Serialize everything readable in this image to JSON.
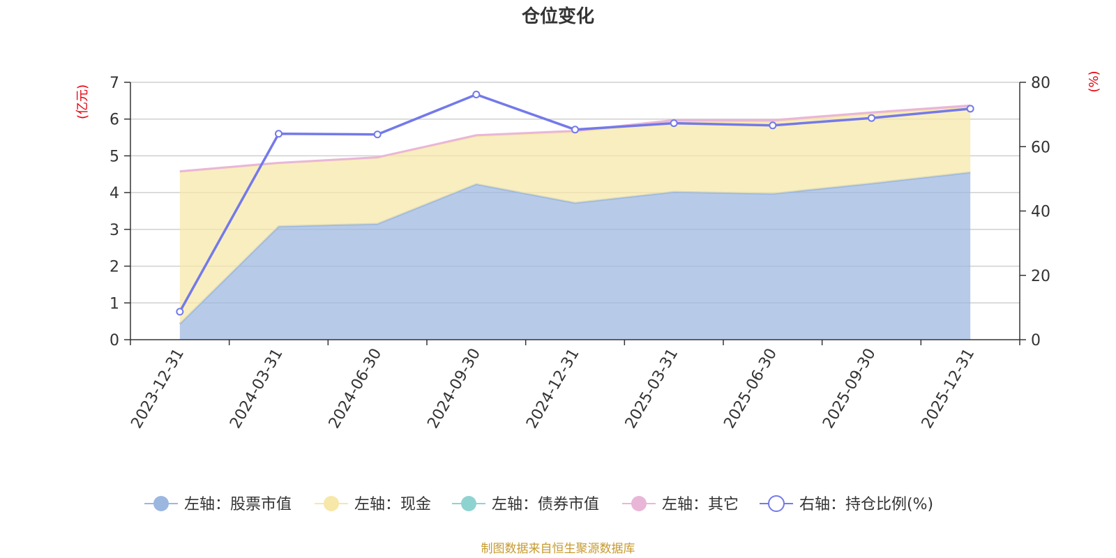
{
  "chart_data": {
    "type": "area",
    "title": "仓位变化",
    "categories": [
      "2023-12-31",
      "2024-03-31",
      "2024-06-30",
      "2024-09-30",
      "2024-12-31",
      "2025-03-31",
      "2025-06-30",
      "2025-09-30",
      "2025-12-31"
    ],
    "left_axis": {
      "unit": "(亿元)",
      "ylim": [
        0,
        7
      ],
      "ticks": [
        "0",
        "1",
        "2",
        "3",
        "4",
        "5",
        "6",
        "7"
      ]
    },
    "right_axis": {
      "unit": "(%)",
      "ylim": [
        0,
        80
      ],
      "ticks": [
        "0",
        "20",
        "40",
        "60",
        "80"
      ]
    },
    "series": [
      {
        "name": "左轴：股票市值",
        "axis": "left",
        "stack": true,
        "color": "#9bb7e0",
        "values": [
          0.43,
          3.08,
          3.15,
          4.23,
          3.72,
          4.02,
          3.97,
          4.25,
          4.55
        ]
      },
      {
        "name": "左轴：现金",
        "axis": "left",
        "stack": true,
        "color": "#f7e7a8",
        "values": [
          4.14,
          1.72,
          1.8,
          1.31,
          1.93,
          1.91,
          1.96,
          1.9,
          1.78
        ]
      },
      {
        "name": "左轴：债券市值",
        "axis": "left",
        "stack": true,
        "color": "#8fd3d1",
        "values": [
          0,
          0,
          0,
          0,
          0,
          0,
          0,
          0,
          0
        ]
      },
      {
        "name": "左轴：其它",
        "axis": "left",
        "stack": true,
        "color": "#e9b6d8",
        "values": [
          0.01,
          0.01,
          0.01,
          0.02,
          0.03,
          0.04,
          0.04,
          0.03,
          0.04
        ]
      },
      {
        "name": "右轴：持仓比例(%)",
        "axis": "right",
        "color": "#7379ea",
        "values": [
          8.7,
          64.0,
          63.8,
          76.2,
          65.3,
          67.3,
          66.6,
          68.9,
          71.8
        ]
      }
    ],
    "source": "制图数据来自恒生聚源数据库"
  }
}
